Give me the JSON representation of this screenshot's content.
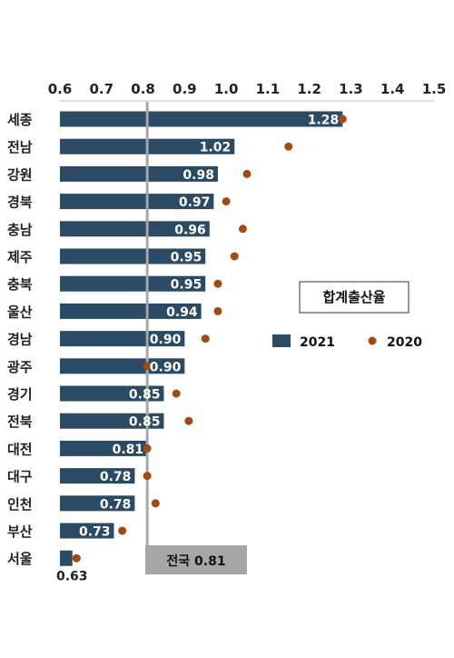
{
  "chart_data": {
    "type": "bar",
    "orientation": "horizontal",
    "categories": [
      "세종",
      "전남",
      "강원",
      "경북",
      "충남",
      "제주",
      "충북",
      "울산",
      "경남",
      "광주",
      "경기",
      "전북",
      "대전",
      "대구",
      "인천",
      "부산",
      "서울"
    ],
    "series": [
      {
        "name": "2021",
        "values": [
          1.28,
          1.02,
          0.98,
          0.97,
          0.96,
          0.95,
          0.95,
          0.94,
          0.9,
          0.9,
          0.85,
          0.85,
          0.81,
          0.78,
          0.78,
          0.73,
          0.63
        ]
      },
      {
        "name": "2020",
        "values": [
          1.28,
          1.15,
          1.05,
          1.0,
          1.04,
          1.02,
          0.98,
          0.98,
          0.95,
          0.81,
          0.88,
          0.91,
          0.81,
          0.81,
          0.83,
          0.75,
          0.64
        ]
      }
    ],
    "data_labels": [
      "1.28",
      "1.02",
      "0.98",
      "0.97",
      "0.96",
      "0.95",
      "0.95",
      "0.94",
      "0.90",
      "0.90",
      "0.85",
      "0.85",
      "0.81",
      "0.78",
      "0.78",
      "0.73",
      "0.63"
    ],
    "xlim": [
      0.6,
      1.5
    ],
    "x_ticks": [
      "0.6",
      "0.7",
      "0.8",
      "0.9",
      "1.0",
      "1.1",
      "1.2",
      "1.3",
      "1.4",
      "1.5"
    ],
    "axis_position": "top",
    "grid": false,
    "legend_title": "합계출산율",
    "legend_position": "right",
    "reference_value": 0.81,
    "reference_label": "전국 0.81",
    "colors": {
      "bar": "#2b4a63",
      "dot": "#a14a12",
      "ref_line": "#a6a6a6",
      "ref_box": "#a6a6a6"
    }
  }
}
